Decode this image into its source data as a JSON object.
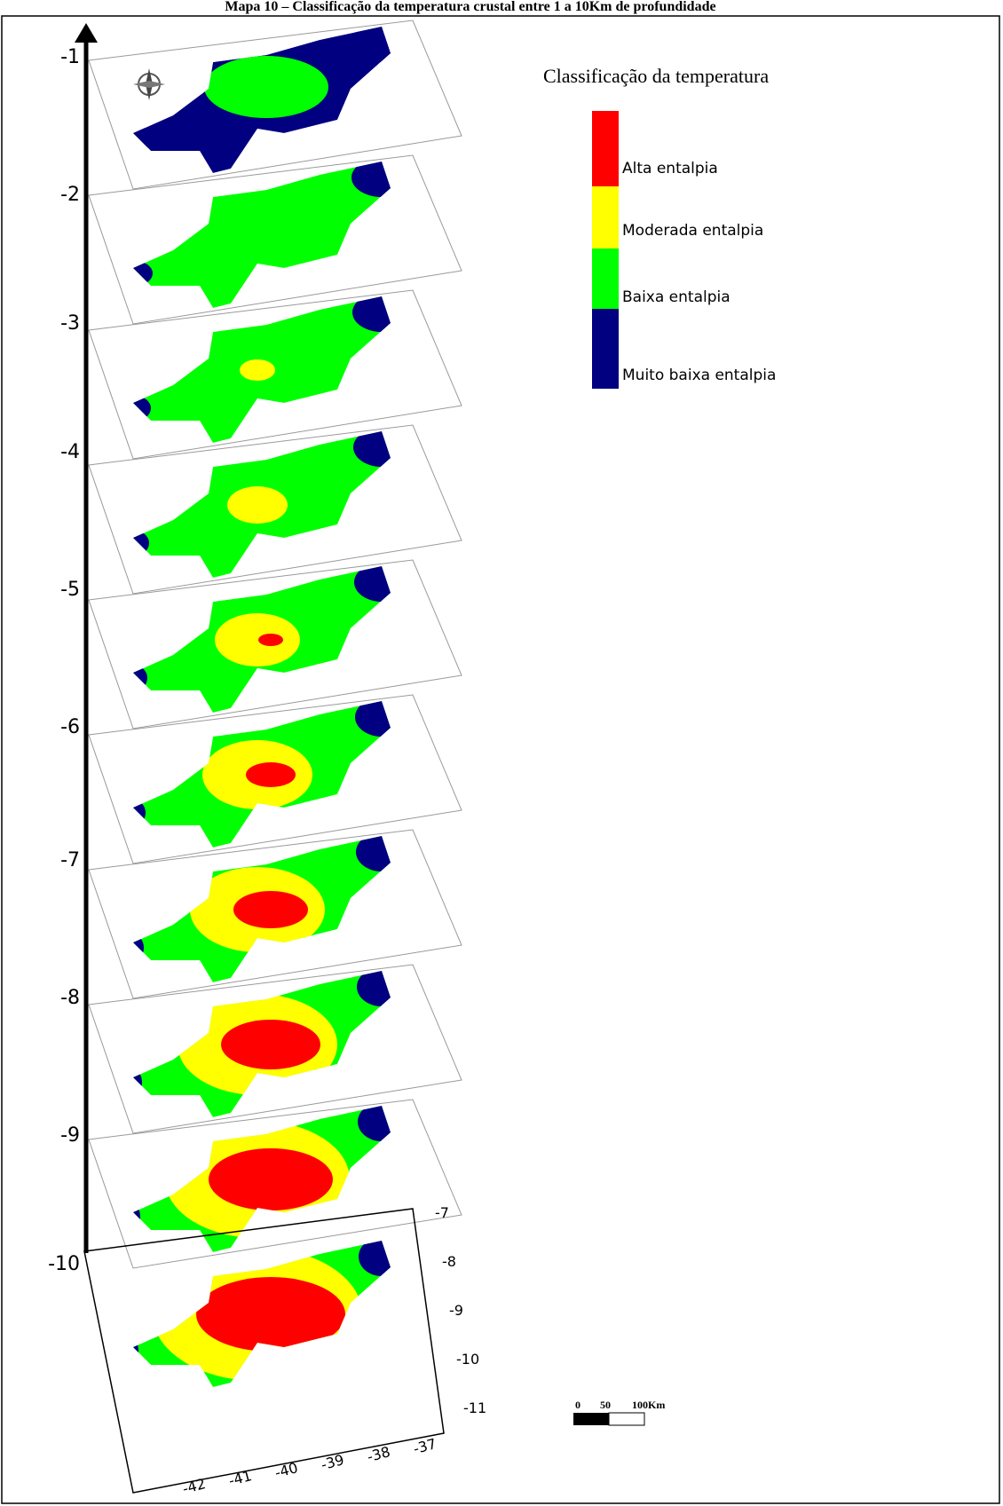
{
  "title": "Mapa 10 – Classificação da temperatura crustal entre 1 a 10Km de profundidade",
  "depth_axis": {
    "labels": [
      "-1",
      "-2",
      "-3",
      "-4",
      "-5",
      "-6",
      "-7",
      "-8",
      "-9",
      "-10"
    ]
  },
  "legend": {
    "title": "Classificação da temperatura",
    "items": [
      {
        "label": "Alta entalpia",
        "color": "#ff0000"
      },
      {
        "label": "Moderada entalpia",
        "color": "#ffff00"
      },
      {
        "label": "Baixa entalpia",
        "color": "#00ff00"
      },
      {
        "label": "Muito baixa entalpia",
        "color": "#000080"
      }
    ]
  },
  "map_axes": {
    "x_labels": [
      "-42",
      "-41",
      "-40",
      "-39",
      "-38",
      "-37"
    ],
    "y_labels": [
      "-7",
      "-8",
      "-9",
      "-10",
      "-11"
    ]
  },
  "scale_bar": {
    "labels": [
      "0",
      "50",
      "100Km"
    ]
  }
}
